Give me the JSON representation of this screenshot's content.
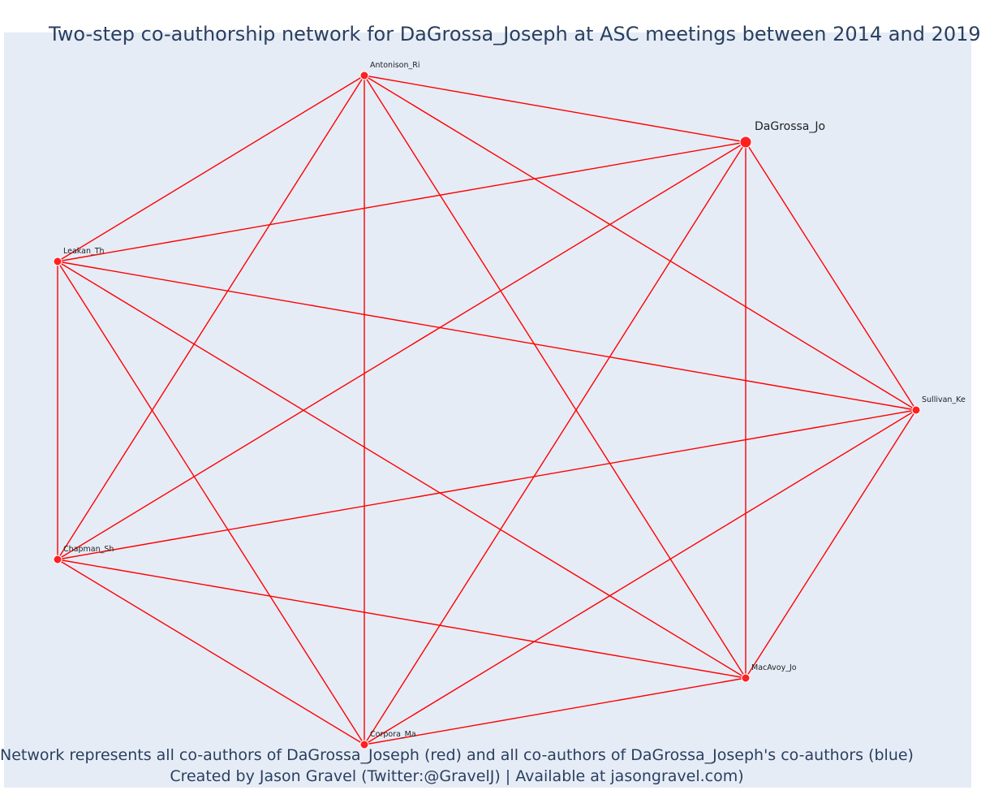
{
  "title": "Two-step co-authorship network for DaGrossa_Joseph at ASC meetings between 2014 and 2019",
  "footer": {
    "line1": "Network represents all co-authors of DaGrossa_Joseph (red) and all co-authors of DaGrossa_Joseph's co-authors (blue)",
    "line2": "Created by Jason Gravel (Twitter:@GravelJ) | Available at jasongravel.com)"
  },
  "colors": {
    "background": "#e5ecf6",
    "edge": "#ff0000",
    "node": "#ff2020",
    "text": "#2a3f5f"
  },
  "network": {
    "focal": "DaGrossa_Jo",
    "nodes": [
      {
        "id": "dagrossa",
        "label": "DaGrossa_Jo",
        "focal": true
      },
      {
        "id": "antonison",
        "label": "Antonison_Ri"
      },
      {
        "id": "leakan",
        "label": "Leakan_Th"
      },
      {
        "id": "chapman",
        "label": "Chapman_Sh"
      },
      {
        "id": "corpora",
        "label": "Corpora_Ma"
      },
      {
        "id": "macavoy",
        "label": "MacAvoy_Jo"
      },
      {
        "id": "sullivan",
        "label": "Sullivan_Ke"
      }
    ],
    "edges": [
      [
        "antonison",
        "dagrossa"
      ],
      [
        "antonison",
        "leakan"
      ],
      [
        "antonison",
        "chapman"
      ],
      [
        "antonison",
        "corpora"
      ],
      [
        "antonison",
        "macavoy"
      ],
      [
        "antonison",
        "sullivan"
      ],
      [
        "dagrossa",
        "leakan"
      ],
      [
        "dagrossa",
        "chapman"
      ],
      [
        "dagrossa",
        "corpora"
      ],
      [
        "dagrossa",
        "macavoy"
      ],
      [
        "dagrossa",
        "sullivan"
      ],
      [
        "leakan",
        "chapman"
      ],
      [
        "leakan",
        "corpora"
      ],
      [
        "leakan",
        "macavoy"
      ],
      [
        "leakan",
        "sullivan"
      ],
      [
        "chapman",
        "corpora"
      ],
      [
        "chapman",
        "macavoy"
      ],
      [
        "chapman",
        "sullivan"
      ],
      [
        "corpora",
        "macavoy"
      ],
      [
        "corpora",
        "sullivan"
      ],
      [
        "macavoy",
        "sullivan"
      ]
    ]
  }
}
